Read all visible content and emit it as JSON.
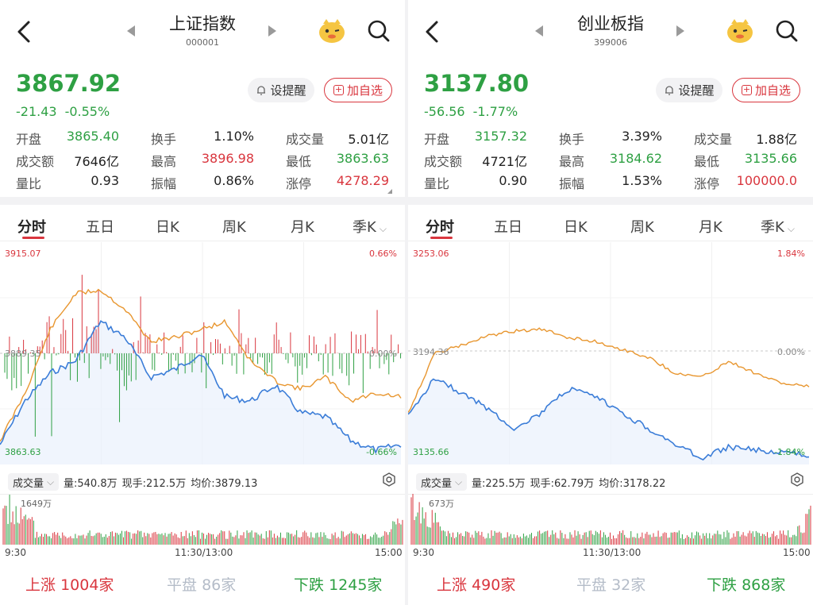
{
  "panels": [
    {
      "title": "上证指数",
      "code": "000001",
      "price": "3867.92",
      "change": "-21.43",
      "change_pct": "-0.55%",
      "alert_label": "设提醒",
      "add_label": "加自选",
      "stats": [
        [
          {
            "label": "开盘",
            "value": "3865.40",
            "color": "green"
          },
          {
            "label": "换手",
            "value": "1.10%",
            "color": "black"
          },
          {
            "label": "成交量",
            "value": "5.01亿",
            "color": "black"
          }
        ],
        [
          {
            "label": "成交额",
            "value": "7646亿",
            "color": "black"
          },
          {
            "label": "最高",
            "value": "3896.98",
            "color": "red"
          },
          {
            "label": "最低",
            "value": "3863.63",
            "color": "green"
          }
        ],
        [
          {
            "label": "量比",
            "value": "0.93",
            "color": "black"
          },
          {
            "label": "振幅",
            "value": "0.86%",
            "color": "black"
          },
          {
            "label": "涨停",
            "value": "4278.29",
            "color": "red"
          }
        ]
      ],
      "tabs": [
        "分时",
        "五日",
        "日K",
        "周K",
        "月K",
        "季K"
      ],
      "chart": {
        "top_left": "3915.07",
        "top_right": "0.66%",
        "mid_left": "3889.35",
        "mid_right": "0.00%",
        "bottom_left": "3863.63",
        "bottom_right": "-0.66%"
      },
      "volume": {
        "selector": "成交量",
        "vol": "量:540.8万",
        "now": "现手:212.5万",
        "avg": "均价:3879.13",
        "max_label": "1649万"
      },
      "times": [
        "9:30",
        "11:30/13:00",
        "15:00"
      ],
      "breadth": {
        "up_label": "上涨",
        "up_count": "1004家",
        "flat_label": "平盘",
        "flat_count": "86家",
        "down_label": "下跌",
        "down_count": "1245家"
      }
    },
    {
      "title": "创业板指",
      "code": "399006",
      "price": "3137.80",
      "change": "-56.56",
      "change_pct": "-1.77%",
      "alert_label": "设提醒",
      "add_label": "加自选",
      "stats": [
        [
          {
            "label": "开盘",
            "value": "3157.32",
            "color": "green"
          },
          {
            "label": "换手",
            "value": "3.39%",
            "color": "black"
          },
          {
            "label": "成交量",
            "value": "1.88亿",
            "color": "black"
          }
        ],
        [
          {
            "label": "成交额",
            "value": "4721亿",
            "color": "black"
          },
          {
            "label": "最高",
            "value": "3184.62",
            "color": "green"
          },
          {
            "label": "最低",
            "value": "3135.66",
            "color": "green"
          }
        ],
        [
          {
            "label": "量比",
            "value": "0.90",
            "color": "black"
          },
          {
            "label": "振幅",
            "value": "1.53%",
            "color": "black"
          },
          {
            "label": "涨停",
            "value": "100000.0",
            "color": "red"
          }
        ]
      ],
      "tabs": [
        "分时",
        "五日",
        "日K",
        "周K",
        "月K",
        "季K"
      ],
      "chart": {
        "top_left": "3253.06",
        "top_right": "1.84%",
        "mid_left": "3194.36",
        "mid_right": "0.00%",
        "bottom_left": "3135.66",
        "bottom_right": "-1.84%"
      },
      "volume": {
        "selector": "成交量",
        "vol": "量:225.5万",
        "now": "现手:62.79万",
        "avg": "均价:3178.22",
        "max_label": "673万"
      },
      "times": [
        "9:30",
        "11:30/13:00",
        "15:00"
      ],
      "breadth": {
        "up_label": "上涨",
        "up_count": "490家",
        "flat_label": "平盘",
        "flat_count": "32家",
        "down_label": "下跌",
        "down_count": "868家"
      }
    }
  ],
  "colors": {
    "up": "#d9363e",
    "down": "#2ea043",
    "price_line": "#3b7dd8",
    "avg_line": "#e8962f",
    "flat": "#b4bcc8"
  }
}
